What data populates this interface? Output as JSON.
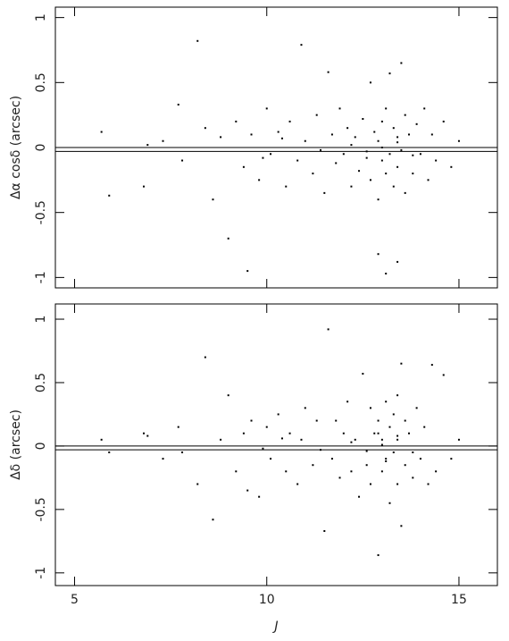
{
  "chart_data": [
    {
      "type": "scatter",
      "ylabel": "Δα cosδ  (arcsec)",
      "color": "#000000",
      "xlim": [
        4.5,
        16
      ],
      "xticks": [
        5,
        10,
        15
      ],
      "ylim": [
        -1.08,
        1.08
      ],
      "yticks": [
        -1,
        -0.5,
        0,
        0.5,
        1
      ],
      "hlines": [
        0,
        -0.03
      ],
      "x": [
        5.7,
        5.9,
        6.8,
        6.9,
        7.3,
        7.7,
        7.8,
        8.2,
        8.4,
        8.6,
        8.8,
        9.0,
        9.2,
        9.4,
        9.5,
        9.6,
        9.8,
        10.0,
        10.1,
        10.3,
        10.5,
        10.6,
        10.8,
        10.9,
        11.0,
        11.2,
        11.3,
        11.5,
        11.6,
        11.7,
        11.8,
        11.9,
        12.0,
        12.1,
        12.2,
        12.3,
        12.4,
        12.5,
        12.6,
        12.7,
        12.7,
        12.8,
        12.9,
        12.9,
        13.0,
        13.0,
        13.1,
        13.1,
        13.2,
        13.2,
        13.3,
        13.3,
        13.4,
        13.4,
        13.5,
        13.5,
        13.6,
        13.6,
        13.7,
        13.8,
        13.9,
        14.0,
        14.1,
        14.2,
        14.3,
        14.4,
        14.6,
        14.8,
        15.0,
        12.2,
        12.6,
        13.0,
        13.4,
        13.8,
        11.4,
        10.4,
        9.9,
        12.9,
        13.1,
        13.4
      ],
      "values": [
        0.12,
        -0.37,
        -0.3,
        0.02,
        0.05,
        0.33,
        -0.1,
        0.82,
        0.15,
        -0.4,
        0.08,
        -0.7,
        0.2,
        -0.15,
        -0.95,
        0.1,
        -0.25,
        0.3,
        -0.05,
        0.12,
        -0.3,
        0.2,
        -0.1,
        0.79,
        0.05,
        -0.2,
        0.25,
        -0.35,
        0.58,
        0.1,
        -0.12,
        0.3,
        -0.05,
        0.15,
        -0.3,
        0.08,
        -0.18,
        0.22,
        -0.08,
        0.5,
        -0.25,
        0.12,
        -0.4,
        0.05,
        0.2,
        -0.1,
        0.3,
        -0.2,
        0.57,
        -0.05,
        0.15,
        -0.3,
        0.08,
        -0.15,
        0.65,
        -0.02,
        0.25,
        -0.35,
        0.1,
        -0.2,
        0.18,
        -0.05,
        0.3,
        -0.25,
        0.1,
        -0.1,
        0.2,
        -0.15,
        0.05,
        0.02,
        -0.03,
        0.0,
        0.04,
        -0.06,
        -0.02,
        0.07,
        -0.08,
        -0.82,
        -0.97,
        -0.88
      ]
    },
    {
      "type": "scatter",
      "ylabel": "Δδ  (arcsec)",
      "xlabel": "J",
      "color": "#000000",
      "xlim": [
        4.5,
        16
      ],
      "xticks": [
        5,
        10,
        15
      ],
      "ylim": [
        -1.1,
        1.12
      ],
      "yticks": [
        -1,
        -0.5,
        0,
        0.5,
        1
      ],
      "hlines": [
        0,
        -0.03
      ],
      "x": [
        5.7,
        5.9,
        6.8,
        6.9,
        7.3,
        7.7,
        7.8,
        8.2,
        8.4,
        8.6,
        8.8,
        9.0,
        9.2,
        9.4,
        9.5,
        9.6,
        9.8,
        10.0,
        10.1,
        10.3,
        10.5,
        10.6,
        10.8,
        10.9,
        11.0,
        11.2,
        11.3,
        11.5,
        11.6,
        11.7,
        11.8,
        11.9,
        12.0,
        12.1,
        12.2,
        12.3,
        12.4,
        12.5,
        12.6,
        12.7,
        12.7,
        12.8,
        12.9,
        12.9,
        13.0,
        13.0,
        13.1,
        13.1,
        13.2,
        13.2,
        13.3,
        13.3,
        13.4,
        13.4,
        13.5,
        13.5,
        13.6,
        13.6,
        13.7,
        13.8,
        13.9,
        14.0,
        14.1,
        14.2,
        14.3,
        14.4,
        14.6,
        14.8,
        15.0,
        12.2,
        12.6,
        13.0,
        13.4,
        13.8,
        11.4,
        10.4,
        9.9,
        12.9,
        13.1,
        13.4
      ],
      "values": [
        0.05,
        -0.05,
        0.1,
        0.08,
        -0.1,
        0.15,
        -0.05,
        -0.3,
        0.7,
        -0.58,
        0.05,
        0.4,
        -0.2,
        0.1,
        -0.35,
        0.2,
        -0.4,
        0.15,
        -0.1,
        0.25,
        -0.2,
        0.1,
        -0.3,
        0.05,
        0.3,
        -0.15,
        0.2,
        -0.67,
        0.92,
        -0.1,
        0.2,
        -0.25,
        0.1,
        0.35,
        -0.2,
        0.05,
        -0.4,
        0.57,
        -0.15,
        0.3,
        -0.3,
        0.1,
        -0.86,
        0.2,
        0.05,
        -0.2,
        0.35,
        -0.1,
        0.15,
        -0.45,
        0.25,
        -0.05,
        0.4,
        -0.3,
        0.65,
        -0.63,
        0.2,
        -0.15,
        0.1,
        -0.25,
        0.3,
        -0.1,
        0.15,
        -0.3,
        0.64,
        -0.2,
        0.56,
        -0.1,
        0.05,
        0.03,
        -0.04,
        0.01,
        0.05,
        -0.05,
        -0.03,
        0.06,
        -0.02,
        0.1,
        -0.12,
        0.08
      ]
    }
  ]
}
